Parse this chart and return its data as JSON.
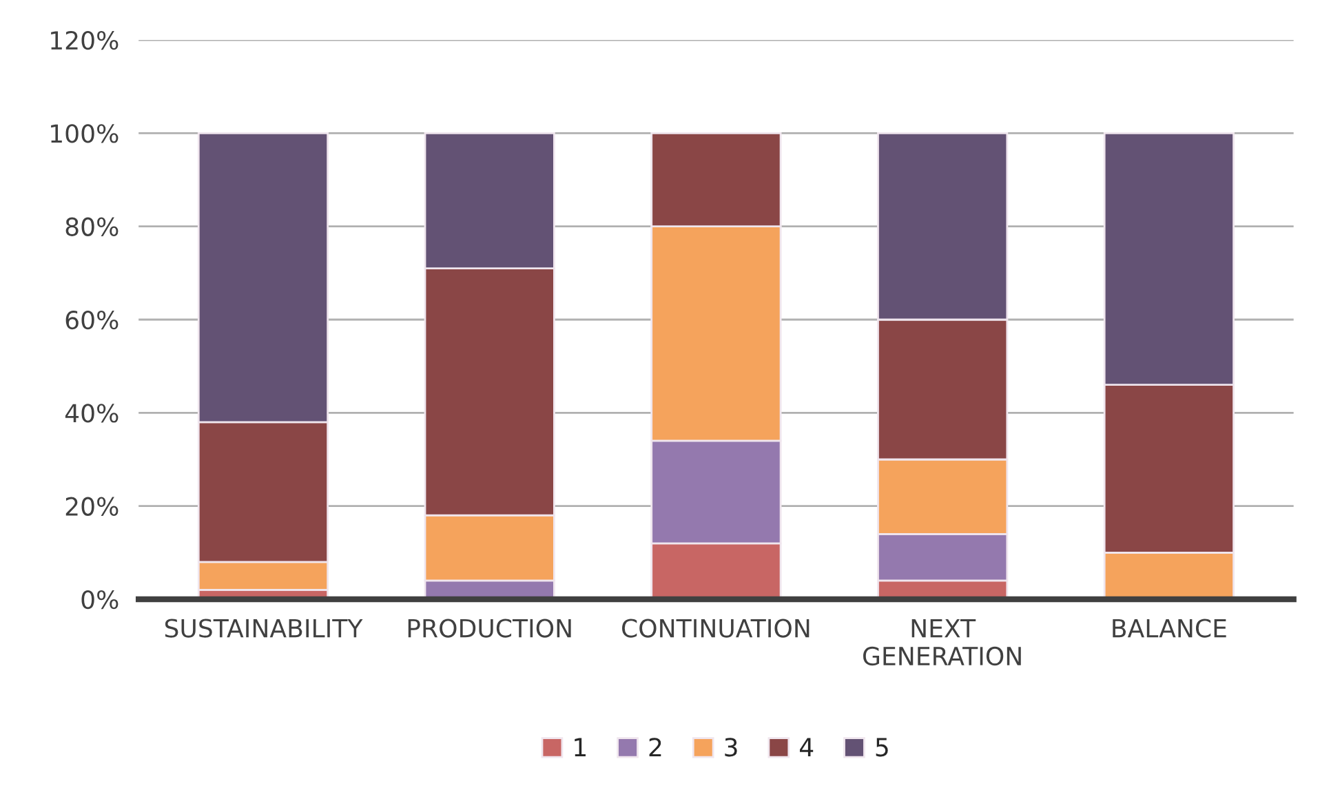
{
  "chart_data": {
    "type": "bar",
    "stacked": true,
    "categories": [
      "SUSTAINABILITY",
      "PRODUCTION",
      "CONTINUATION",
      "NEXT\nGENERATION",
      "BALANCE"
    ],
    "series": [
      {
        "name": "1",
        "color": "#c86664",
        "values": [
          2,
          0,
          12,
          4,
          0
        ]
      },
      {
        "name": "2",
        "color": "#9479ae",
        "values": [
          0,
          4,
          22,
          10,
          0
        ]
      },
      {
        "name": "3",
        "color": "#f5a35c",
        "values": [
          6,
          14,
          46,
          16,
          10
        ]
      },
      {
        "name": "4",
        "color": "#8a4646",
        "values": [
          30,
          53,
          20,
          30,
          36
        ]
      },
      {
        "name": "5",
        "color": "#635274",
        "values": [
          62,
          29,
          0,
          40,
          54
        ]
      }
    ],
    "ylim": [
      0,
      120
    ],
    "yticks": [
      {
        "value": 0,
        "label": "0%"
      },
      {
        "value": 20,
        "label": "20%"
      },
      {
        "value": 40,
        "label": "40%"
      },
      {
        "value": 60,
        "label": "60%"
      },
      {
        "value": 80,
        "label": "80%"
      },
      {
        "value": 100,
        "label": "100%"
      },
      {
        "value": 120,
        "label": "120%"
      }
    ],
    "grid": "y",
    "legend": "bottom"
  }
}
